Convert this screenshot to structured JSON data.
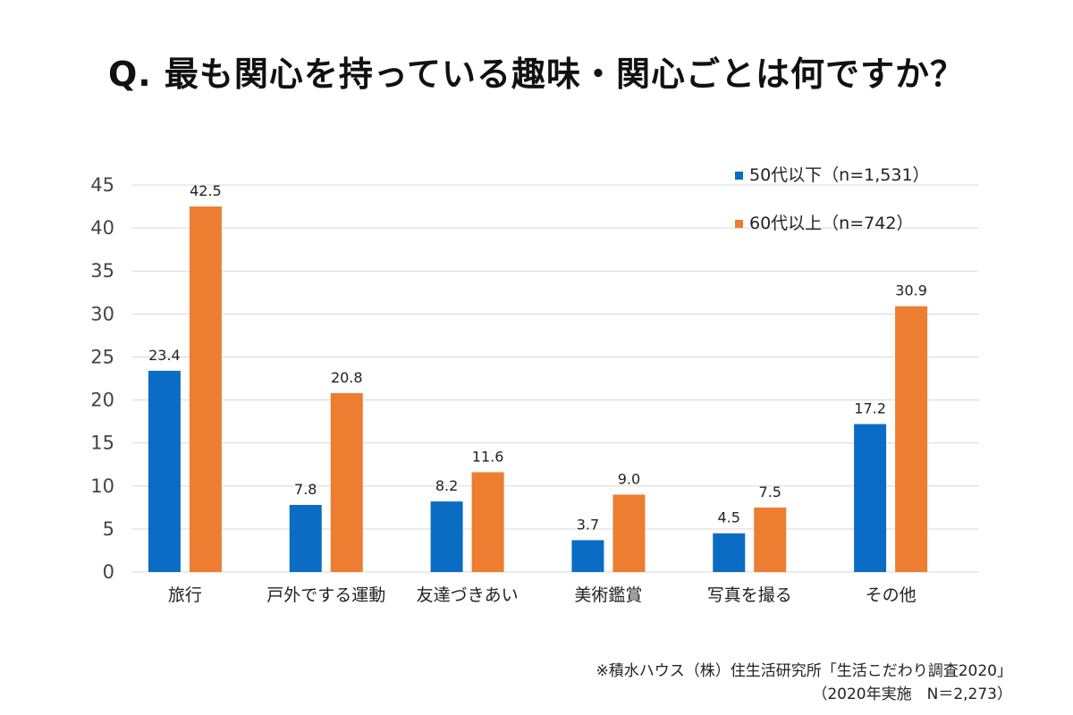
{
  "title": "Q. 最も関心を持っている趣味・関心ごとは何ですか？",
  "source": {
    "line1": "※積水ハウス（株）住生活研究所「生活こだわり調査2020」",
    "line2": "（2020年実施　N＝2,273）"
  },
  "colors": {
    "series1": "#0a6cc4",
    "series2": "#ed7d31",
    "grid": "#d9d9d9"
  },
  "chart_data": {
    "type": "bar",
    "categories": [
      "旅行",
      "戸外でする運動",
      "友達づきあい",
      "美術鑑賞",
      "写真を撮る",
      "その他"
    ],
    "series": [
      {
        "name": "50代以下（n=1,531）",
        "values": [
          23.4,
          7.8,
          8.2,
          3.7,
          4.5,
          17.2
        ],
        "labels": [
          "23.4",
          "7.8",
          "8.2",
          "3.7",
          "4.5",
          "17.2"
        ]
      },
      {
        "name": "60代以上（n=742）",
        "values": [
          42.5,
          20.8,
          11.6,
          9.0,
          7.5,
          30.9
        ],
        "labels": [
          "42.5",
          "20.8",
          "11.6",
          "9.0",
          "7.5",
          "30.9"
        ]
      }
    ],
    "ylim": [
      0,
      45
    ],
    "yticks": [
      0,
      5,
      10,
      15,
      20,
      25,
      30,
      35,
      40,
      45
    ],
    "grid": true,
    "legend_position": "top-right"
  }
}
